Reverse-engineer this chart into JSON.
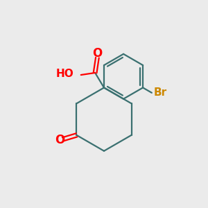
{
  "background_color": "#ebebeb",
  "bond_color": "#3a7070",
  "oxygen_color": "#ff0000",
  "bromine_color": "#cc8800",
  "bond_width": 1.6,
  "figsize": [
    3.0,
    3.0
  ],
  "dpi": 100,
  "xlim": [
    0,
    10
  ],
  "ylim": [
    0,
    10
  ]
}
